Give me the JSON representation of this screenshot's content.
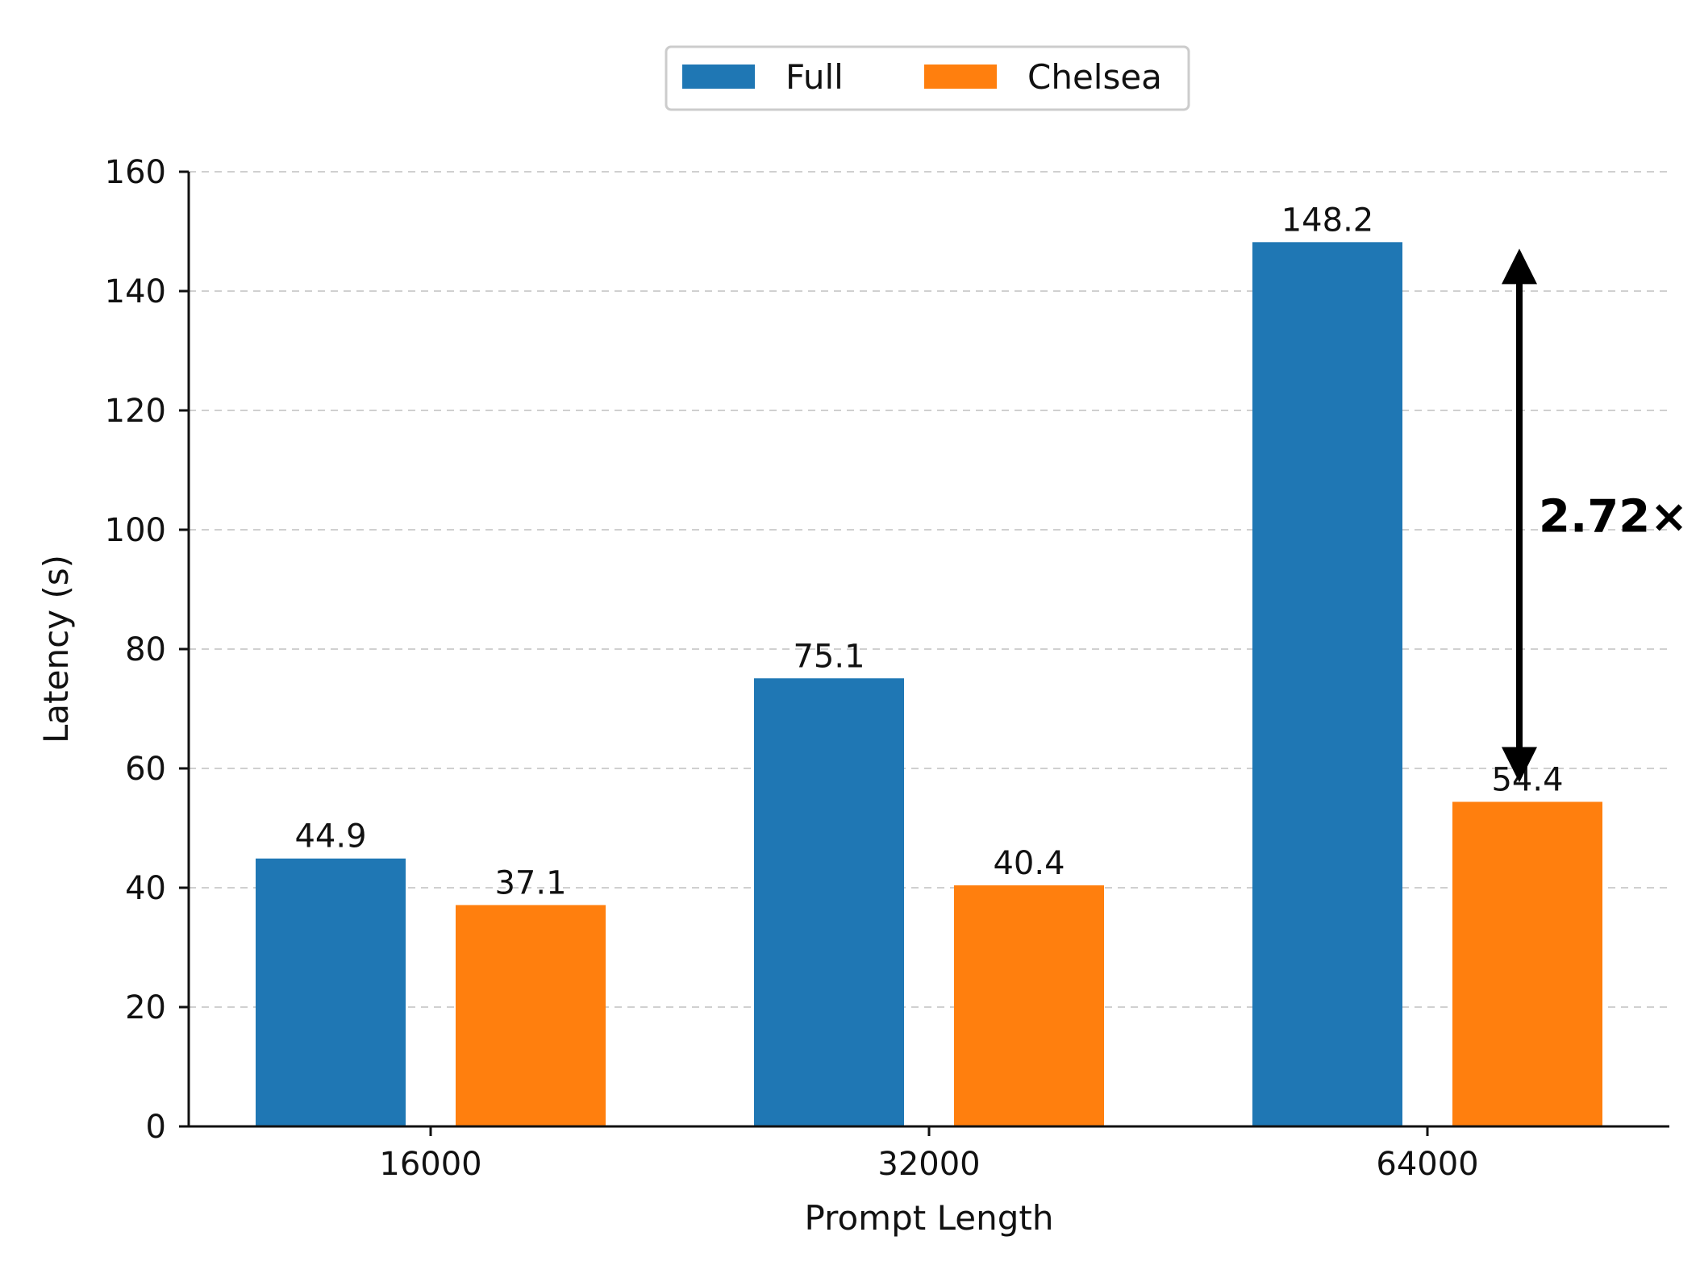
{
  "chart_data": {
    "type": "bar",
    "categories": [
      "16000",
      "32000",
      "64000"
    ],
    "series": [
      {
        "name": "Full",
        "values": [
          44.9,
          75.1,
          148.2
        ],
        "color": "#1f77b4"
      },
      {
        "name": "Chelsea",
        "values": [
          37.1,
          40.4,
          54.4
        ],
        "color": "#ff7f0e"
      }
    ],
    "data_labels": [
      [
        "44.9",
        "75.1",
        "148.2"
      ],
      [
        "37.1",
        "40.4",
        "54.4"
      ]
    ],
    "xlabel": "Prompt Length",
    "ylabel": "Latency (s)",
    "ylim": [
      0,
      160
    ],
    "yticks": [
      0,
      20,
      40,
      60,
      80,
      100,
      120,
      140,
      160
    ],
    "ytick_labels": [
      "0",
      "20",
      "40",
      "60",
      "80",
      "100",
      "120",
      "140",
      "160"
    ],
    "grid": "horizontal dashed",
    "legend_position": "top-center",
    "annotation": {
      "text": "2.72×",
      "category": "64000",
      "from_value": 148.2,
      "to_value": 54.4
    }
  }
}
